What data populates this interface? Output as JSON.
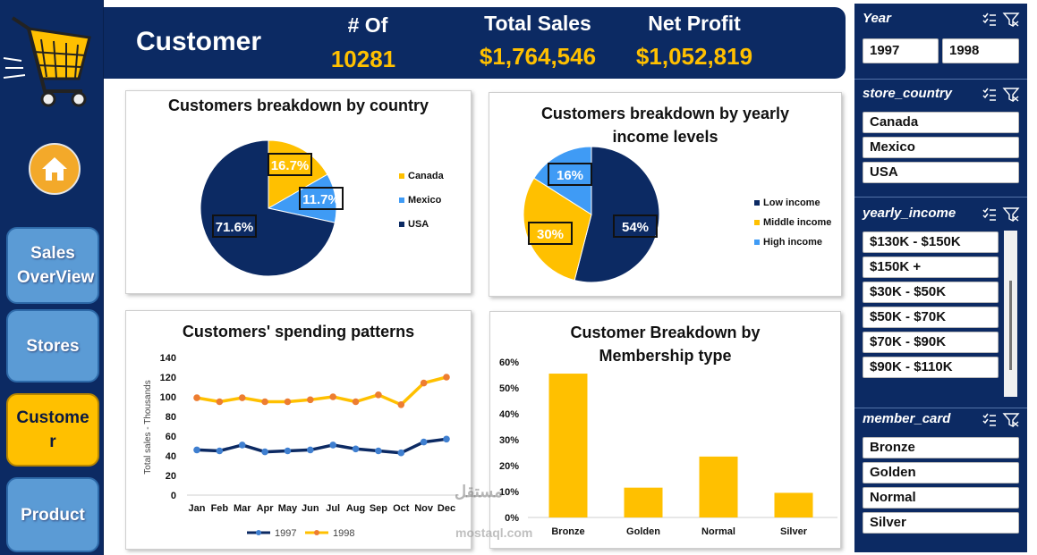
{
  "nav": {
    "items": [
      {
        "label": "Sales OverView"
      },
      {
        "label": "Stores"
      },
      {
        "label": "Custome r"
      },
      {
        "label": "Product"
      }
    ]
  },
  "header": {
    "title": "Customer",
    "kpis": [
      {
        "label": "# Of",
        "value": "10281"
      },
      {
        "label": "Total Sales",
        "value": "$1,764,546"
      },
      {
        "label": "Net Profit",
        "value": "$1,052,819"
      }
    ]
  },
  "colors": {
    "navy": "#0c2a63",
    "gold": "#ffc000",
    "blue": "#3f9bf5",
    "orange": "#ed7d31"
  },
  "slicers": {
    "year": {
      "title": "Year",
      "items": [
        "1997",
        "1998"
      ]
    },
    "store_country": {
      "title": "store_country",
      "items": [
        "Canada",
        "Mexico",
        "USA"
      ]
    },
    "yearly_income": {
      "title": "yearly_income",
      "items": [
        "$130K - $150K",
        "$150K +",
        "$30K - $50K",
        "$50K - $70K",
        "$70K - $90K",
        "$90K - $110K"
      ]
    },
    "member_card": {
      "title": "member_card",
      "items": [
        "Bronze",
        "Golden",
        "Normal",
        "Silver"
      ]
    }
  },
  "chart_data": [
    {
      "type": "pie",
      "title": "Customers breakdown by country",
      "slices": [
        {
          "label": "Canada",
          "value": 16.7,
          "display": "16.7%",
          "color": "#ffc000"
        },
        {
          "label": "Mexico",
          "value": 11.7,
          "display": "11.7%",
          "color": "#3f9bf5"
        },
        {
          "label": "USA",
          "value": 71.6,
          "display": "71.6%",
          "color": "#0c2a63"
        }
      ],
      "legend_position": "right"
    },
    {
      "type": "pie",
      "title": "Customers breakdown by yearly income levels",
      "slices": [
        {
          "label": "Low income",
          "value": 54,
          "display": "54%",
          "color": "#0c2a63"
        },
        {
          "label": "Middle income",
          "value": 30,
          "display": "30%",
          "color": "#ffc000"
        },
        {
          "label": "High income",
          "value": 16,
          "display": "16%",
          "color": "#3f9bf5"
        }
      ],
      "legend_position": "right"
    },
    {
      "type": "line",
      "title": "Customers' spending patterns",
      "ylabel": "Total sales - Thousands",
      "ylim": [
        0,
        140
      ],
      "yticks": [
        "0",
        "20",
        "40",
        "60",
        "80",
        "100",
        "120",
        "140"
      ],
      "categories": [
        "Jan",
        "Feb",
        "Mar",
        "Apr",
        "May",
        "Jun",
        "Jul",
        "Aug",
        "Sep",
        "Oct",
        "Nov",
        "Dec"
      ],
      "series": [
        {
          "name": "1997",
          "color": "#0c2a63",
          "marker": "#3f7fd0",
          "values": [
            46,
            45,
            51,
            44,
            45,
            46,
            51,
            47,
            45,
            43,
            54,
            57
          ]
        },
        {
          "name": "1998",
          "color": "#ffc000",
          "marker": "#ed7d31",
          "values": [
            99,
            95,
            99,
            95,
            95,
            97,
            100,
            95,
            102,
            92,
            114,
            120
          ]
        }
      ],
      "legend_position": "bottom"
    },
    {
      "type": "bar",
      "title": "Customer Breakdown by Membership type",
      "categories": [
        "Bronze",
        "Golden",
        "Normal",
        "Silver"
      ],
      "values": [
        55.5,
        11.5,
        23.5,
        9.5
      ],
      "ylim": [
        0,
        60
      ],
      "yticks": [
        "0%",
        "10%",
        "20%",
        "30%",
        "40%",
        "50%",
        "60%"
      ],
      "color": "#ffc000"
    }
  ],
  "watermark": {
    "text": "مستقل",
    "sub": "mostaql.com"
  }
}
